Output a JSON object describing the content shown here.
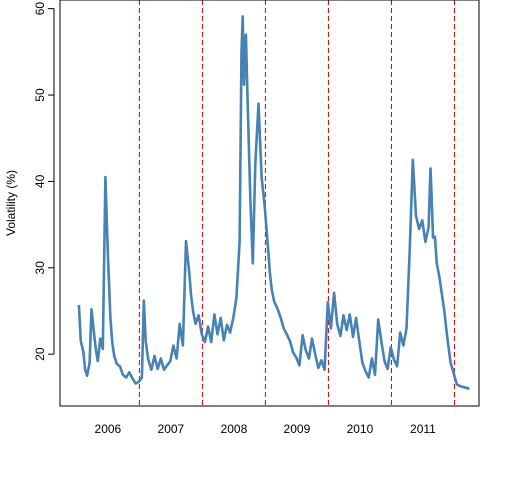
{
  "chart_data": {
    "type": "line",
    "title": "",
    "xlabel": "",
    "ylabel": "Volatility (%)",
    "ylim": [
      14,
      61
    ],
    "yticks": [
      20,
      30,
      40,
      50,
      60
    ],
    "year_labels": [
      "2006",
      "2007",
      "2008",
      "2009",
      "2010",
      "2011"
    ],
    "year_boundaries": [
      2006.96,
      2007.96,
      2008.96,
      2009.96,
      2010.96,
      2011.96
    ],
    "grid": false,
    "legend": "none",
    "colors": {
      "line": "#4682b4",
      "boundary": "#cc0000"
    },
    "series": [
      {
        "x": [
          2006.0,
          2006.03,
          2006.07,
          2006.1,
          2006.13,
          2006.17,
          2006.2,
          2006.24,
          2006.27,
          2006.3,
          2006.34,
          2006.38,
          2006.42,
          2006.46,
          2006.5,
          2006.53,
          2006.56,
          2006.6,
          2006.65,
          2006.7,
          2006.75,
          2006.8,
          2006.85,
          2006.9,
          2006.95,
          2007.0,
          2007.03,
          2007.06,
          2007.1,
          2007.15,
          2007.2,
          2007.25,
          2007.3,
          2007.35,
          2007.4,
          2007.45,
          2007.5,
          2007.55,
          2007.6,
          2007.65,
          2007.7,
          2007.75,
          2007.78,
          2007.81,
          2007.85,
          2007.9,
          2007.95,
          2008.0,
          2008.05,
          2008.1,
          2008.15,
          2008.2,
          2008.25,
          2008.3,
          2008.35,
          2008.4,
          2008.45,
          2008.5,
          2008.55,
          2008.58,
          2008.6,
          2008.62,
          2008.65,
          2008.68,
          2008.72,
          2008.76,
          2008.8,
          2008.85,
          2008.9,
          2008.95,
          2009.0,
          2009.03,
          2009.06,
          2009.1,
          2009.15,
          2009.2,
          2009.25,
          2009.3,
          2009.35,
          2009.4,
          2009.45,
          2009.5,
          2009.55,
          2009.6,
          2009.65,
          2009.7,
          2009.75,
          2009.8,
          2009.85,
          2009.9,
          2009.95,
          2010.0,
          2010.05,
          2010.1,
          2010.15,
          2010.2,
          2010.25,
          2010.3,
          2010.35,
          2010.4,
          2010.45,
          2010.5,
          2010.55,
          2010.6,
          2010.65,
          2010.7,
          2010.75,
          2010.8,
          2010.85,
          2010.9,
          2010.95,
          2011.0,
          2011.05,
          2011.1,
          2011.15,
          2011.2,
          2011.25,
          2011.3,
          2011.35,
          2011.4,
          2011.45,
          2011.5,
          2011.55,
          2011.58,
          2011.6,
          2011.62,
          2011.65,
          2011.68,
          2011.72,
          2011.76,
          2011.8,
          2011.83,
          2011.86,
          2011.9,
          2011.94,
          2011.97,
          2012.0,
          2012.05,
          2012.1,
          2012.15,
          2012.2
        ],
        "values": [
          25.7,
          21.5,
          20.3,
          18.2,
          17.5,
          19.0,
          25.2,
          22.4,
          20.5,
          19.2,
          21.8,
          20.6,
          40.5,
          31.5,
          24.2,
          21.3,
          19.8,
          18.9,
          18.6,
          17.6,
          17.3,
          17.9,
          17.2,
          16.6,
          16.8,
          17.3,
          26.2,
          21.5,
          19.4,
          18.2,
          19.8,
          18.3,
          19.5,
          18.2,
          18.7,
          19.2,
          21.0,
          19.5,
          23.5,
          21.0,
          33.1,
          29.5,
          26.8,
          25.1,
          23.5,
          24.5,
          22.3,
          21.4,
          23.2,
          21.4,
          24.6,
          22.3,
          24.2,
          21.6,
          23.4,
          22.5,
          24.2,
          26.5,
          33.0,
          55.0,
          59.1,
          51.2,
          57.0,
          48.5,
          38.2,
          30.5,
          42.0,
          49.0,
          40.5,
          37.0,
          32.5,
          29.5,
          27.5,
          26.1,
          25.3,
          24.3,
          23.0,
          22.3,
          21.5,
          20.2,
          19.6,
          18.7,
          22.2,
          20.5,
          19.5,
          21.8,
          20.0,
          18.4,
          19.3,
          18.2,
          26.0,
          23.0,
          27.1,
          23.5,
          22.1,
          24.5,
          22.8,
          24.6,
          22.0,
          24.2,
          21.5,
          19.0,
          18.0,
          17.3,
          19.5,
          17.6,
          24.0,
          21.5,
          19.2,
          18.3,
          20.8,
          19.4,
          18.6,
          22.5,
          21.0,
          23.0,
          32.0,
          42.5,
          36.0,
          34.5,
          35.5,
          33.0,
          34.7,
          41.5,
          38.0,
          33.5,
          33.6,
          30.5,
          29.0,
          27.0,
          25.0,
          23.0,
          21.2,
          19.0,
          18.0,
          17.2,
          16.5,
          16.3,
          16.2,
          16.1,
          16.0
        ]
      }
    ]
  }
}
